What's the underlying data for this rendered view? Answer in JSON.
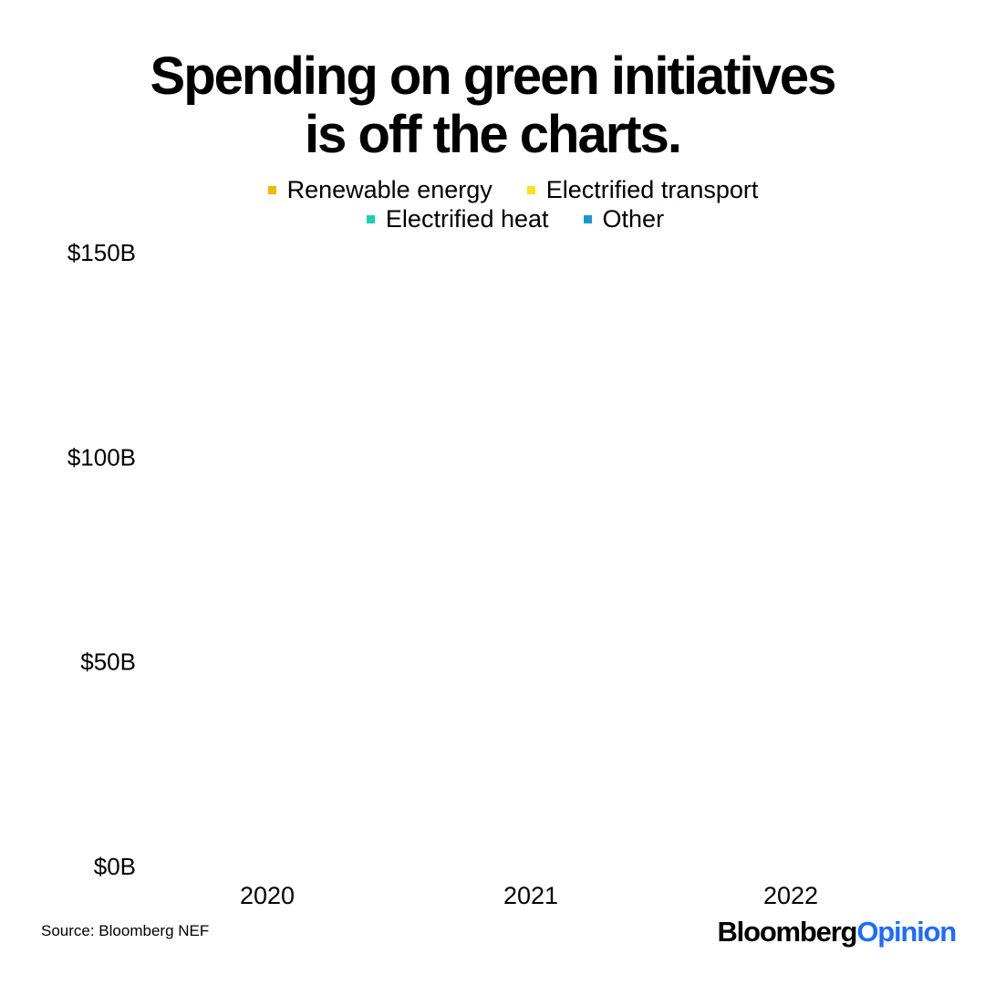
{
  "title": {
    "line1": "Spending on green initiatives",
    "line2": "is off the charts."
  },
  "legend": [
    {
      "label": "Renewable energy",
      "color": "#f5b800"
    },
    {
      "label": "Electrified transport",
      "color": "#ffe11a"
    },
    {
      "label": "Electrified heat",
      "color": "#1fcfb4"
    },
    {
      "label": "Other",
      "color": "#1a96d6"
    }
  ],
  "source": "Source: Bloomberg NEF",
  "logo": {
    "part1": "Bloomberg",
    "part2": "Opinion"
  },
  "chart_data": {
    "type": "bar",
    "stacked": true,
    "categories": [
      "2020",
      "2021",
      "2022"
    ],
    "ylim": [
      0,
      150
    ],
    "yticks": [
      {
        "value": 0,
        "label": "$0B"
      },
      {
        "value": 50,
        "label": "$50B"
      },
      {
        "value": 100,
        "label": "$100B"
      },
      {
        "value": 150,
        "label": "$150B"
      }
    ],
    "series": [
      {
        "name": "Renewable energy",
        "values": [
          0,
          0,
          0
        ]
      },
      {
        "name": "Electrified transport",
        "values": [
          0,
          0,
          0
        ]
      },
      {
        "name": "Electrified heat",
        "values": [
          0,
          0,
          0
        ]
      },
      {
        "name": "Other",
        "values": [
          0,
          0,
          0
        ]
      }
    ],
    "grid": false,
    "legend_position": "top-center"
  }
}
